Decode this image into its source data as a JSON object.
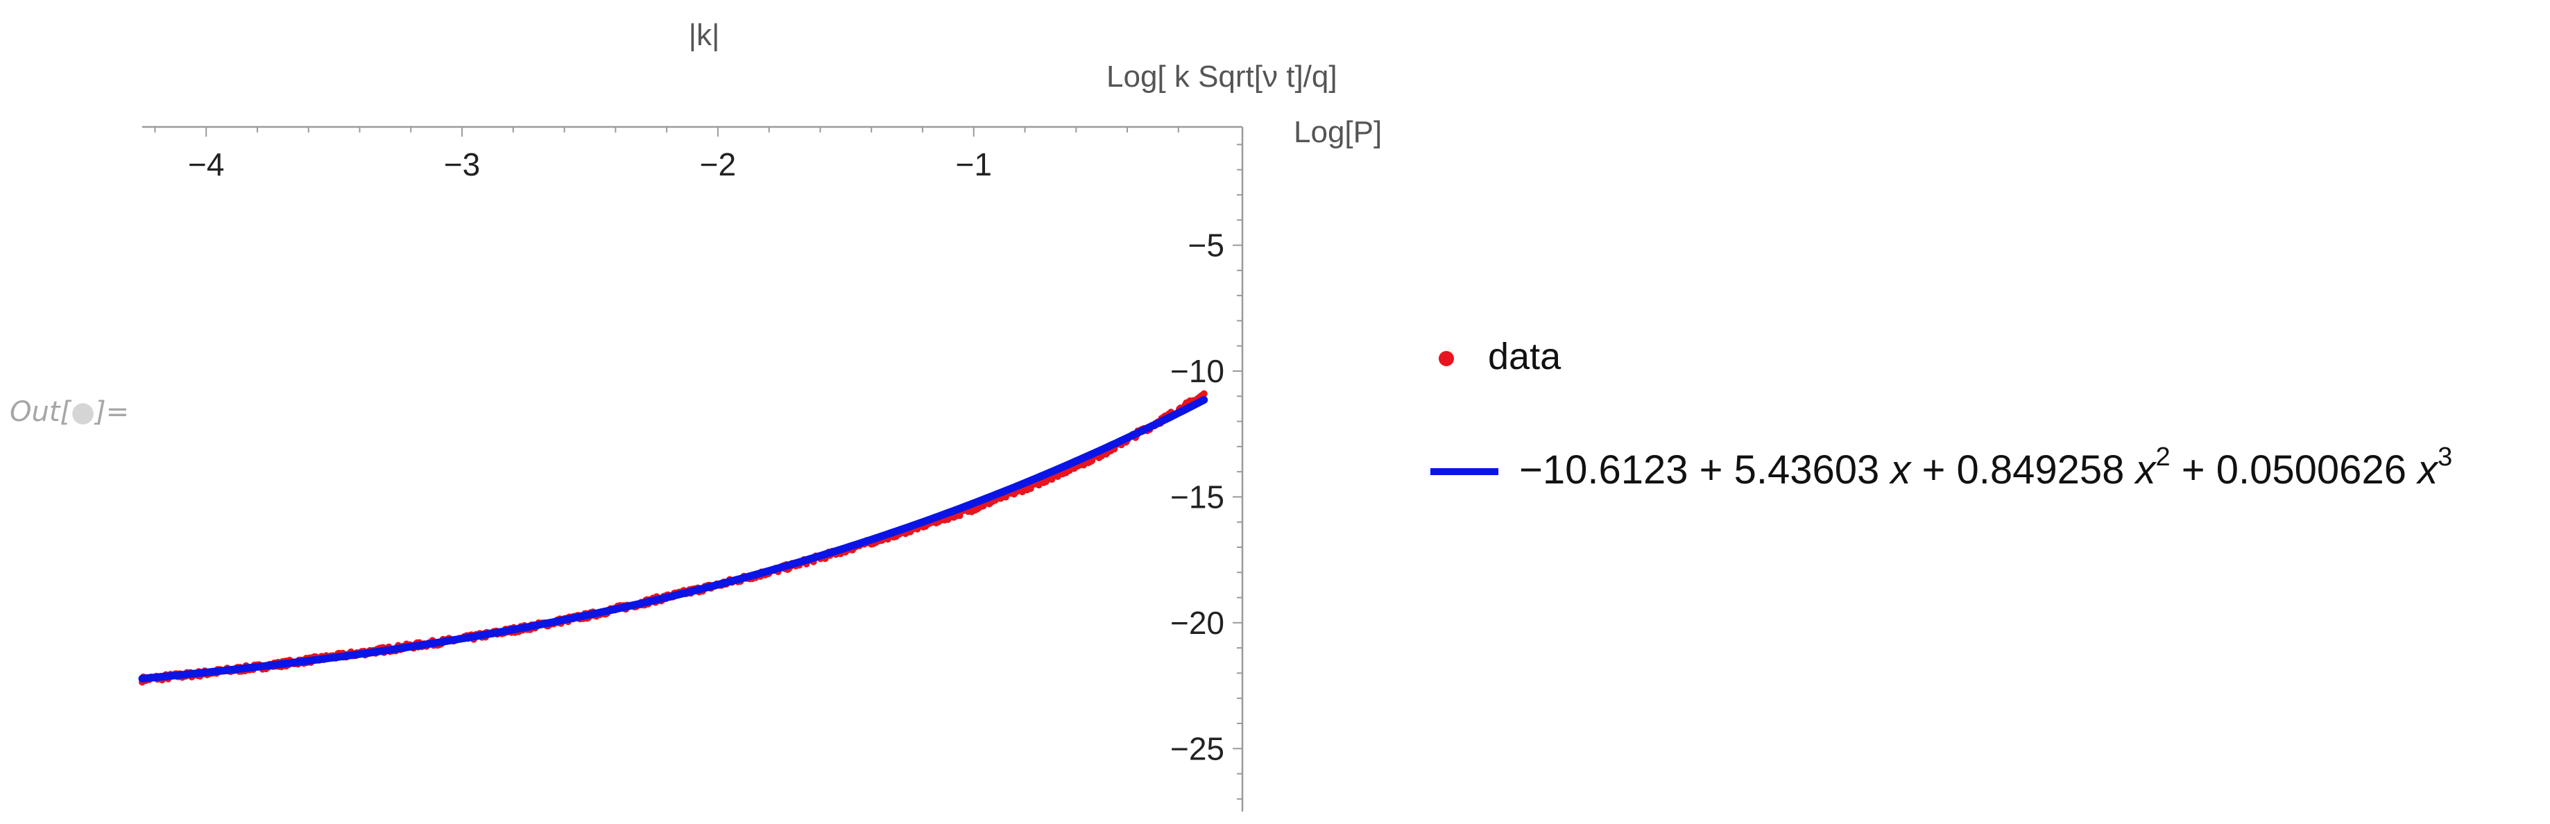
{
  "cell_label": {
    "prefix": "Out[",
    "suffix": "]="
  },
  "chart_data": {
    "type": "scatter",
    "title": "|k|",
    "xlabel": "Log[ k Sqrt[ν t]/q]",
    "ylabel": "Log[P]",
    "xlim": [
      -4.25,
      0.05
    ],
    "ylim": [
      -27.5,
      -0.3
    ],
    "x_ticks": [
      -4,
      -3,
      -2,
      -1
    ],
    "x_tick_labels": [
      "−4",
      "−3",
      "−2",
      "−1"
    ],
    "y_ticks": [
      -5,
      -10,
      -15,
      -20,
      -25
    ],
    "y_tick_labels": [
      "−5",
      "−10",
      "−15",
      "−20",
      "−25"
    ],
    "x_axis_position": "top",
    "y_axis_position": "right",
    "grid": false,
    "legend_position": "right",
    "series": [
      {
        "name": "data",
        "kind": "points",
        "color": "#e8141e",
        "x_range": [
          -4.25,
          -0.1
        ],
        "points": [
          [
            -4.25,
            -22.25
          ],
          [
            -4.0,
            -22.0
          ],
          [
            -3.75,
            -21.7
          ],
          [
            -3.5,
            -21.35
          ],
          [
            -3.25,
            -21.0
          ],
          [
            -3.0,
            -20.65
          ],
          [
            -2.75,
            -20.2
          ],
          [
            -2.5,
            -19.7
          ],
          [
            -2.25,
            -19.1
          ],
          [
            -2.0,
            -18.5
          ],
          [
            -1.75,
            -17.85
          ],
          [
            -1.5,
            -17.1
          ],
          [
            -1.25,
            -16.3
          ],
          [
            -1.0,
            -15.45
          ],
          [
            -0.75,
            -14.45
          ],
          [
            -0.5,
            -13.3
          ],
          [
            -0.25,
            -11.85
          ],
          [
            -0.1,
            -10.95
          ]
        ]
      },
      {
        "name": "−10.6123 + 5.43603 x + 0.849258 x² + 0.0500626 x³",
        "kind": "fit",
        "color": "#0a14e6",
        "coefficients": [
          -10.6123,
          5.43603,
          0.849258,
          0.0500626
        ],
        "x_range": [
          -4.25,
          -0.1
        ]
      }
    ],
    "legend": {
      "data_label": "data",
      "fit_parts": {
        "a": "−10.6123 + 5.43603 ",
        "x1": "x",
        "b": " + 0.849258 ",
        "x2": "x",
        "e2": "2",
        "c": " + 0.0500626 ",
        "x3": "x",
        "e3": "3"
      }
    }
  }
}
